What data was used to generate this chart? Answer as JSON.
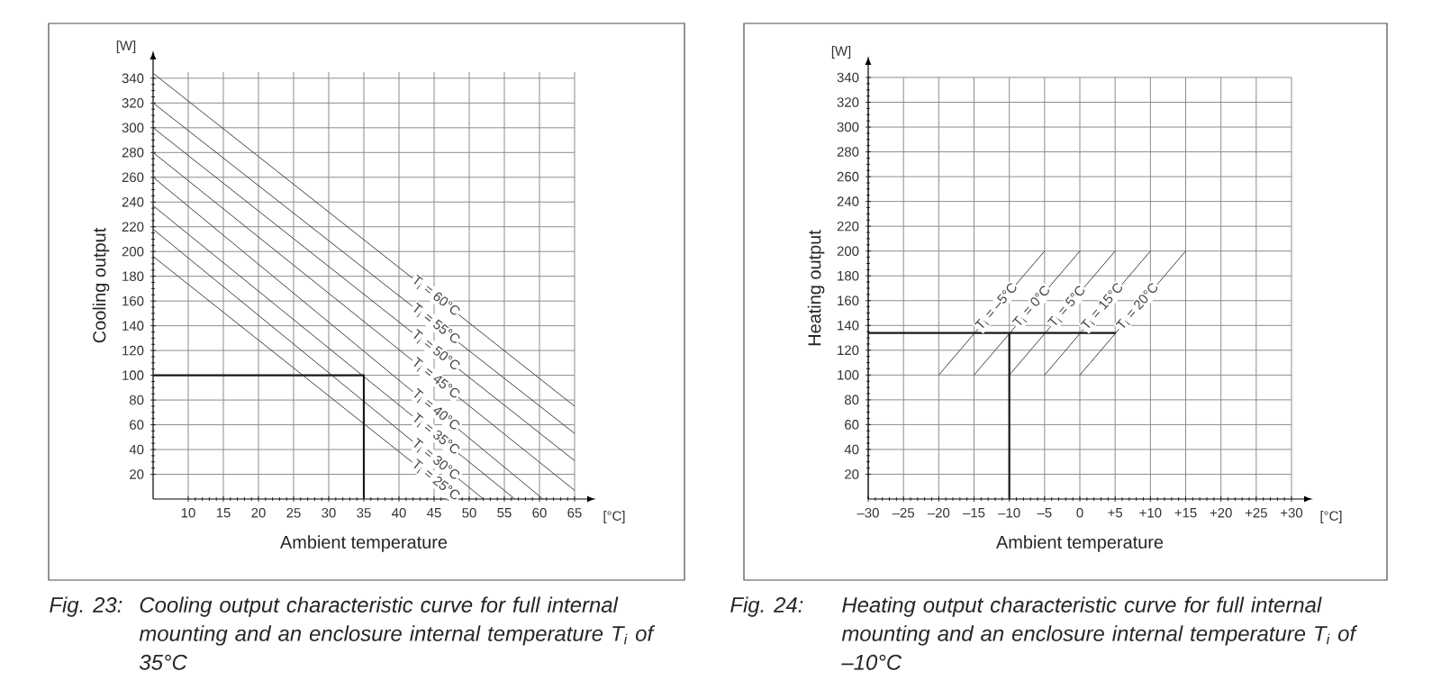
{
  "chart_data": [
    {
      "type": "line",
      "xlabel": "Ambient temperature",
      "ylabel": "Cooling output",
      "xlim": [
        5,
        65
      ],
      "ylim": [
        0,
        345
      ],
      "xticks": [
        10,
        15,
        20,
        25,
        30,
        35,
        40,
        45,
        50,
        55,
        60,
        65
      ],
      "yticks": [
        20,
        40,
        60,
        80,
        100,
        120,
        140,
        160,
        180,
        200,
        220,
        240,
        260,
        280,
        300,
        320,
        340
      ],
      "grid": true,
      "series": [
        {
          "name": "T$_{i}$ = 60°C",
          "color": "#444444",
          "x": [
            5,
            65
          ],
          "values": [
            344,
            75
          ]
        },
        {
          "name": "T$_{i}$ = 55°C",
          "color": "#444444",
          "x": [
            5,
            65
          ],
          "values": [
            320,
            53
          ]
        },
        {
          "name": "T$_{i}$ = 50°C",
          "color": "#444444",
          "x": [
            5,
            65
          ],
          "values": [
            300,
            31
          ]
        },
        {
          "name": "T$_{i}$ = 45°C",
          "color": "#444444",
          "x": [
            5,
            65
          ],
          "values": [
            280,
            7
          ]
        },
        {
          "name": "T$_{i}$ = 40°C",
          "color": "#444444",
          "x": [
            5,
            60.5
          ],
          "values": [
            260,
            0
          ]
        },
        {
          "name": "T$_{i}$ = 35°C",
          "color": "#444444",
          "x": [
            5,
            56.5
          ],
          "values": [
            237,
            0
          ]
        },
        {
          "name": "T$_{i}$ = 30°C",
          "color": "#444444",
          "x": [
            5,
            52
          ],
          "values": [
            218,
            0
          ]
        },
        {
          "name": "T$_{i}$ = 25°C",
          "color": "#444444",
          "x": [
            5,
            48.5
          ],
          "values": [
            196,
            0
          ]
        },
        {
          "color": "#1a1a1a",
          "x": [
            35,
            35,
            5
          ],
          "values": [
            0,
            100,
            100
          ]
        }
      ],
      "annotations": [
        "[W]",
        "[°C]",
        "Fig. 23:",
        "Cooling output characteristic curve for full internal mounting and an enclosure internal temperature T$_{i}$ of 35°C"
      ]
    },
    {
      "type": "line",
      "xlabel": "Ambient temperature",
      "ylabel": "Heating output",
      "xlim": [
        -30,
        30
      ],
      "ylim": [
        0,
        340
      ],
      "xticks": [
        {
          "value": -30,
          "label": "–30"
        },
        {
          "value": -25,
          "label": "–25"
        },
        {
          "value": -20,
          "label": "–20"
        },
        {
          "value": -15,
          "label": "–15"
        },
        {
          "value": -10,
          "label": "–10"
        },
        {
          "value": -5,
          "label": "–5"
        },
        0,
        {
          "value": 5,
          "label": "+5"
        },
        {
          "value": 10,
          "label": "+10"
        },
        {
          "value": 15,
          "label": "+15"
        },
        {
          "value": 20,
          "label": "+20"
        },
        {
          "value": 25,
          "label": "+25"
        },
        {
          "value": 30,
          "label": "+30"
        }
      ],
      "yticks": [
        20,
        40,
        60,
        80,
        100,
        120,
        140,
        160,
        180,
        200,
        220,
        240,
        260,
        280,
        300,
        320,
        340
      ],
      "grid": true,
      "series": [
        {
          "name": "T$_{i}$ = –5°C",
          "color": "#444444",
          "x": [
            -20,
            -5
          ],
          "values": [
            100,
            200
          ]
        },
        {
          "name": "T$_{i}$ = 0°C",
          "color": "#444444",
          "x": [
            -15,
            0
          ],
          "values": [
            100,
            200
          ]
        },
        {
          "name": "T$_{i}$ = 5°C",
          "color": "#444444",
          "x": [
            -10,
            5
          ],
          "values": [
            100,
            200
          ]
        },
        {
          "name": "T$_{i}$ = 15°C",
          "color": "#444444",
          "x": [
            -5,
            10
          ],
          "values": [
            100,
            200
          ]
        },
        {
          "name": "T$_{i}$ = 20°C",
          "color": "#444444",
          "x": [
            0,
            15
          ],
          "values": [
            100,
            200
          ]
        },
        {
          "color": "#1a1a1a",
          "x": [
            -10,
            -10,
            5,
            -30
          ],
          "values": [
            0,
            134,
            134,
            134
          ]
        }
      ],
      "annotations": [
        "[W]",
        "[°C]",
        "Fig. 24:",
        "Heating output characteristic curve for full internal mounting and an enclosure internal temperature T$_{i}$ of –10°C"
      ]
    }
  ]
}
